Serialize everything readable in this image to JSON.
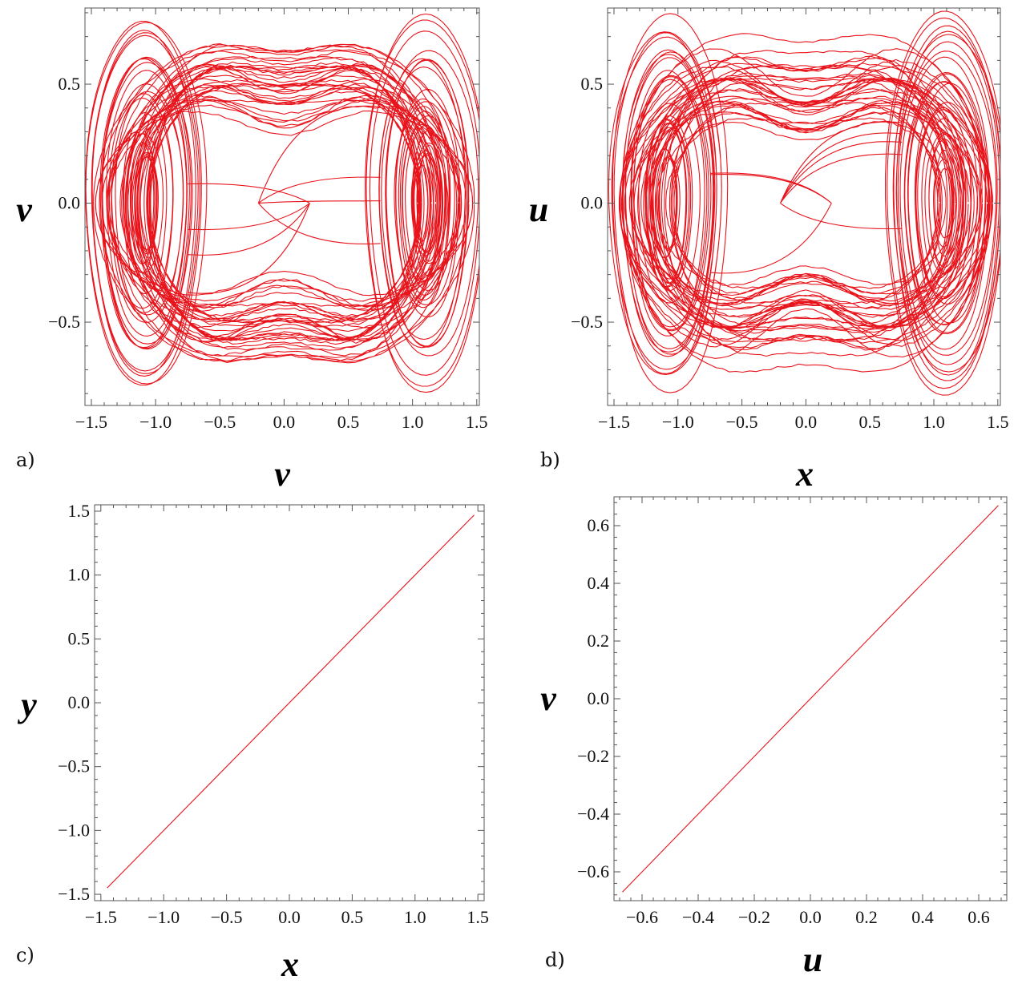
{
  "colors": {
    "curve": "#e8141c",
    "frame": "#555555"
  },
  "chart_data": [
    {
      "panel": "a)",
      "type": "line",
      "description_kind": "phase portrait",
      "xlabel": "v",
      "ylabel": "v",
      "xlim": [
        -1.55,
        1.52
      ],
      "ylim": [
        -0.85,
        0.82
      ],
      "xticks": [
        -1.5,
        -1.0,
        -0.5,
        0.0,
        0.5,
        1.0,
        1.5
      ],
      "xtick_labels": [
        "−1.5",
        "−1.0",
        "−0.5",
        "0.0",
        "0.5",
        "1.0",
        "1.5"
      ],
      "yticks": [
        -0.5,
        0.0,
        0.5
      ],
      "ytick_labels": [
        "−0.5",
        "0.0",
        "0.5"
      ],
      "attractor": {
        "wings": [
          {
            "center": [
              -1.08,
              0.0
            ]
          },
          {
            "center": [
              1.1,
              0.0
            ]
          }
        ],
        "x_extent": [
          -1.5,
          1.48
        ],
        "y_extent": [
          -0.82,
          0.81
        ]
      }
    },
    {
      "panel": "b)",
      "type": "line",
      "description_kind": "phase portrait",
      "xlabel": "x",
      "ylabel": "u",
      "xlim": [
        -1.55,
        1.52
      ],
      "ylim": [
        -0.85,
        0.82
      ],
      "xticks": [
        -1.5,
        -1.0,
        -0.5,
        0.0,
        0.5,
        1.0,
        1.5
      ],
      "xtick_labels": [
        "−1.5",
        "−1.0",
        "−0.5",
        "0.0",
        "0.5",
        "1.0",
        "1.5"
      ],
      "yticks": [
        -0.5,
        0.0,
        0.5
      ],
      "ytick_labels": [
        "−0.5",
        "0.0",
        "0.5"
      ],
      "attractor": {
        "wings": [
          {
            "center": [
              -1.08,
              0.0
            ]
          },
          {
            "center": [
              1.1,
              0.0
            ]
          }
        ],
        "x_extent": [
          -1.5,
          1.48
        ],
        "y_extent": [
          -0.82,
          0.81
        ]
      }
    },
    {
      "panel": "c)",
      "type": "line",
      "xlabel": "x",
      "ylabel": "y",
      "xlim": [
        -1.55,
        1.55
      ],
      "ylim": [
        -1.55,
        1.55
      ],
      "xticks": [
        -1.5,
        -1.0,
        -0.5,
        0.0,
        0.5,
        1.0,
        1.5
      ],
      "xtick_labels": [
        "−1.5",
        "−1.0",
        "−0.5",
        "0.0",
        "0.5",
        "1.0",
        "1.5"
      ],
      "yticks": [
        -1.5,
        -1.0,
        -0.5,
        0.0,
        0.5,
        1.0,
        1.5
      ],
      "ytick_labels": [
        "−1.5",
        "−1.0",
        "−0.5",
        "0.0",
        "0.5",
        "1.0",
        "1.5"
      ],
      "series": [
        {
          "x": [
            -1.45,
            1.47
          ],
          "y": [
            -1.45,
            1.47
          ]
        }
      ]
    },
    {
      "panel": "d)",
      "type": "line",
      "xlabel": "u",
      "ylabel": "v",
      "xlim": [
        -0.7,
        0.7
      ],
      "ylim": [
        -0.7,
        0.7
      ],
      "xticks": [
        -0.6,
        -0.4,
        -0.2,
        0.0,
        0.2,
        0.4,
        0.6
      ],
      "xtick_labels": [
        "−0.6",
        "−0.4",
        "−0.2",
        "0.0",
        "0.2",
        "0.4",
        "0.6"
      ],
      "yticks": [
        -0.6,
        -0.4,
        -0.2,
        0.0,
        0.2,
        0.4,
        0.6
      ],
      "ytick_labels": [
        "−0.6",
        "−0.4",
        "−0.2",
        "0.0",
        "0.2",
        "0.4",
        "0.6"
      ],
      "series": [
        {
          "x": [
            -0.67,
            0.67
          ],
          "y": [
            -0.67,
            0.67
          ]
        }
      ]
    }
  ]
}
